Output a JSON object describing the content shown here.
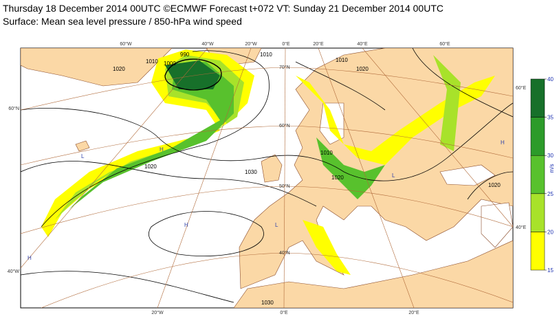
{
  "header": {
    "title": "Thursday 18 December 2014 00UTC ©ECMWF Forecast t+072 VT: Sunday 21 December 2014 00UTC",
    "subtitle": "Surface: Mean sea level pressure / 850-hPa wind speed"
  },
  "map": {
    "graticule_top": [
      "60°W",
      "40°W",
      "20°W",
      "0°E",
      "20°E",
      "40°E",
      "60°E"
    ],
    "graticule_bottom": [
      "20°W",
      "0°E",
      "20°E"
    ],
    "graticule_left": [
      "60°N",
      "40°W"
    ],
    "graticule_right": [
      "60°E",
      "40°E"
    ],
    "graticule_inner": [
      "70°N",
      "60°N",
      "50°N",
      "40°N"
    ],
    "isobar_labels": [
      "1010",
      "1000",
      "990",
      "1010",
      "1020",
      "1020",
      "1030",
      "1010",
      "1020",
      "1020",
      "1010",
      "1020",
      "1030"
    ],
    "pressure_centres": [
      "L",
      "L",
      "H",
      "H",
      "H",
      "H",
      "L"
    ]
  },
  "colorbar": {
    "unit": "m/s",
    "ticks": [
      15,
      20,
      25,
      30,
      35,
      40
    ],
    "colors": [
      "#ffff00",
      "#a8e22a",
      "#58c12d",
      "#2c9b2a",
      "#17702a"
    ]
  }
}
